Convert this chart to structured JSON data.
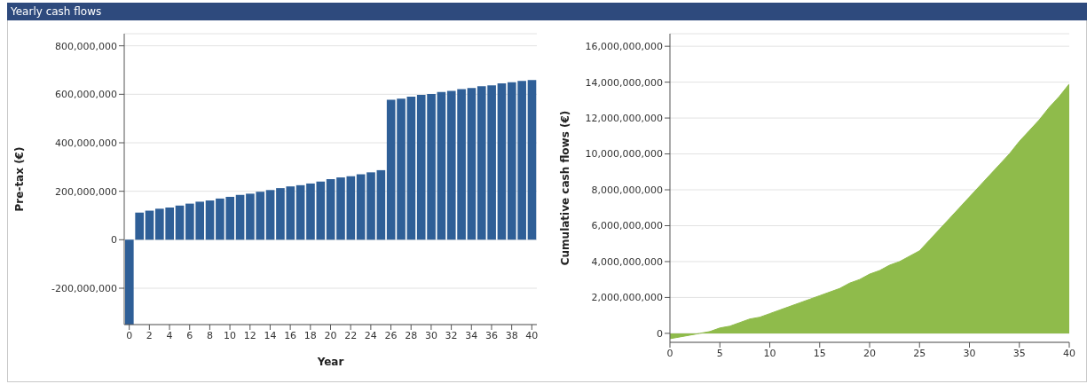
{
  "chart_data": [
    {
      "type": "bar",
      "title": "Yearly cash flows",
      "xlabel": "Year",
      "ylabel": "Pre-tax (€)",
      "x": [
        0,
        1,
        2,
        3,
        4,
        5,
        6,
        7,
        8,
        9,
        10,
        11,
        12,
        13,
        14,
        15,
        16,
        17,
        18,
        19,
        20,
        21,
        22,
        23,
        24,
        25,
        26,
        27,
        28,
        29,
        30,
        31,
        32,
        33,
        34,
        35,
        36,
        37,
        38,
        39,
        40
      ],
      "values": [
        -350000000,
        112000000,
        120000000,
        128000000,
        133000000,
        141000000,
        149000000,
        157000000,
        162000000,
        170000000,
        177000000,
        185000000,
        190000000,
        198000000,
        205000000,
        213000000,
        220000000,
        225000000,
        232000000,
        240000000,
        250000000,
        257000000,
        262000000,
        270000000,
        278000000,
        287000000,
        577000000,
        582000000,
        590000000,
        598000000,
        601000000,
        609000000,
        614000000,
        621000000,
        626000000,
        633000000,
        637000000,
        645000000,
        650000000,
        655000000,
        659000000
      ],
      "color": "#2f5f97",
      "xlim": [
        -0.5,
        40.5
      ],
      "xticks": [
        0,
        2,
        4,
        6,
        8,
        10,
        12,
        14,
        16,
        18,
        20,
        22,
        24,
        26,
        28,
        30,
        32,
        34,
        36,
        38,
        40
      ],
      "ylim": [
        -350000000,
        850000000
      ],
      "yticks": [
        {
          "value": -200000000,
          "label": "-200,000,000"
        },
        0,
        {
          "value": 200000000,
          "label": "200,000,000"
        },
        {
          "value": 400000000,
          "label": "400,000,000"
        },
        {
          "value": 600000000,
          "label": "600,000,000"
        },
        {
          "value": 800000000,
          "label": "800,000,000"
        }
      ],
      "grid": "y"
    },
    {
      "type": "area",
      "ylabel": "Cumulative cash flows (€)",
      "x": [
        0,
        1,
        2,
        3,
        4,
        5,
        6,
        7,
        8,
        9,
        10,
        11,
        12,
        13,
        14,
        15,
        16,
        17,
        18,
        19,
        20,
        21,
        22,
        23,
        24,
        25,
        26,
        27,
        28,
        29,
        30,
        31,
        32,
        33,
        34,
        35,
        36,
        37,
        38,
        39,
        40
      ],
      "values": [
        -300000000,
        -200000000,
        -100000000,
        0,
        100000000,
        300000000,
        400000000,
        600000000,
        800000000,
        900000000,
        1100000000,
        1300000000,
        1500000000,
        1700000000,
        1900000000,
        2100000000,
        2300000000,
        2500000000,
        2800000000,
        3000000000,
        3300000000,
        3500000000,
        3800000000,
        4000000000,
        4300000000,
        4600000000,
        5200000000,
        5800000000,
        6400000000,
        7000000000,
        7600000000,
        8200000000,
        8800000000,
        9400000000,
        10000000000,
        10700000000,
        11300000000,
        11900000000,
        12600000000,
        13200000000,
        13900000000
      ],
      "color": "#8fbb4b",
      "xlim": [
        0,
        40
      ],
      "xticks": [
        0,
        5,
        10,
        15,
        20,
        25,
        30,
        35,
        40
      ],
      "ylim": [
        -500000000,
        16700000000
      ],
      "yticks": [
        0,
        {
          "value": 2000000000,
          "label": "2,000,000,000"
        },
        {
          "value": 4000000000,
          "label": "4,000,000,000"
        },
        {
          "value": 6000000000,
          "label": "6,000,000,000"
        },
        {
          "value": 8000000000,
          "label": "8,000,000,000"
        },
        {
          "value": 10000000000,
          "label": "10,000,000,000"
        },
        {
          "value": 12000000000,
          "label": "12,000,000,000"
        },
        {
          "value": 14000000000,
          "label": "14,000,000,000"
        },
        {
          "value": 16000000000,
          "label": "16,000,000,000"
        }
      ],
      "grid": "y"
    }
  ]
}
